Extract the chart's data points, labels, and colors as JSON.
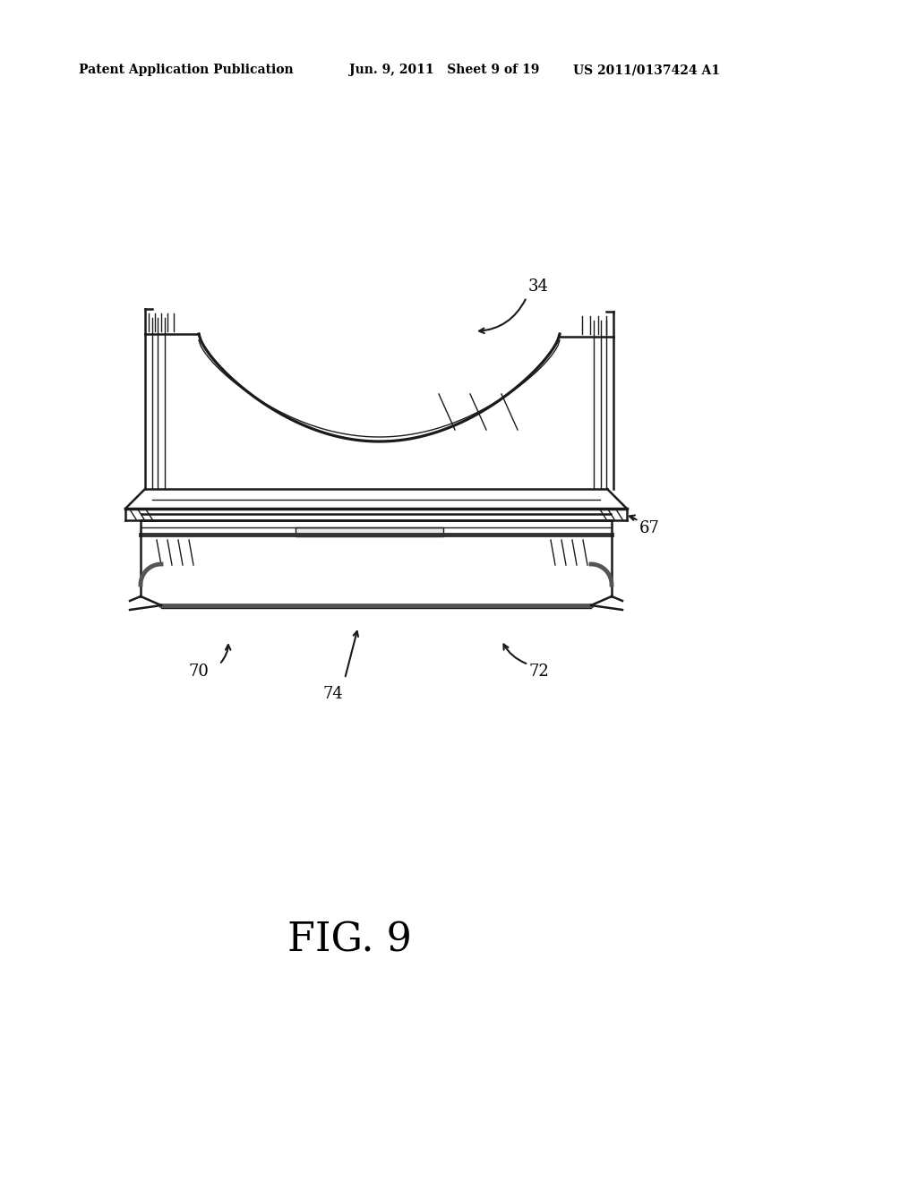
{
  "bg_color": "#ffffff",
  "header_left": "Patent Application Publication",
  "header_center": "Jun. 9, 2011   Sheet 9 of 19",
  "header_right": "US 2011/0137424 A1",
  "fig_label": "FIG. 9",
  "label_34": "34",
  "label_67": "67",
  "label_70": "70",
  "label_72": "72",
  "label_74": "74"
}
